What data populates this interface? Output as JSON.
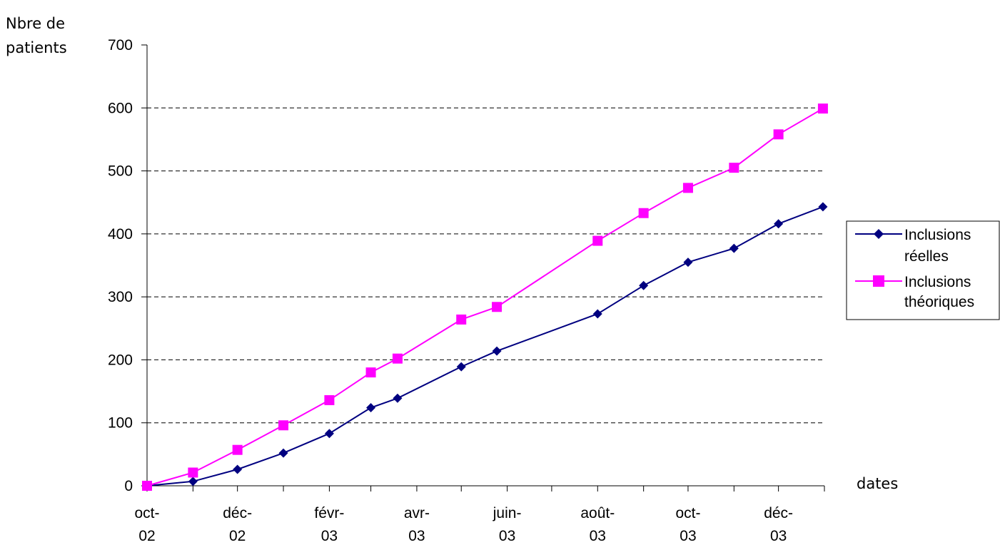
{
  "chart_data": {
    "type": "line",
    "title": "",
    "ylabel": [
      "Nbre de",
      "patients"
    ],
    "xlabel": "dates",
    "ylim": [
      0,
      700
    ],
    "yticks": [
      0,
      100,
      200,
      300,
      400,
      500,
      600,
      700
    ],
    "x_tick_labels": [
      [
        "oct-",
        "02"
      ],
      [
        "déc-",
        "02"
      ],
      [
        "févr-",
        "03"
      ],
      [
        "avr-",
        "03"
      ],
      [
        "juin-",
        "03"
      ],
      [
        "août-",
        "03"
      ],
      [
        "oct-",
        "03"
      ],
      [
        "déc-",
        "03"
      ]
    ],
    "grid": "horizontal-dashed",
    "legend_position": "right",
    "series": [
      {
        "name": [
          "Inclusions",
          "réelles"
        ],
        "color": "#000080",
        "marker": "diamond",
        "x": [
          "2002-10-01",
          "2002-11-01",
          "2002-12-01",
          "2003-01-01",
          "2003-02-01",
          "2003-03-01",
          "2003-03-19",
          "2003-05-01",
          "2003-05-25",
          "2003-08-01",
          "2003-09-01",
          "2003-10-01",
          "2003-11-01",
          "2003-12-01",
          "2003-12-31"
        ],
        "values": [
          0,
          7,
          26,
          52,
          83,
          124,
          139,
          189,
          214,
          273,
          318,
          355,
          377,
          416,
          443
        ]
      },
      {
        "name": [
          "Inclusions",
          "théoriques"
        ],
        "color": "#FF00FF",
        "marker": "square",
        "x": [
          "2002-10-01",
          "2002-11-01",
          "2002-12-01",
          "2003-01-01",
          "2003-02-01",
          "2003-03-01",
          "2003-03-19",
          "2003-05-01",
          "2003-05-25",
          "2003-08-01",
          "2003-09-01",
          "2003-10-01",
          "2003-11-01",
          "2003-12-01",
          "2003-12-31"
        ],
        "values": [
          0,
          21,
          57,
          96,
          136,
          180,
          202,
          264,
          284,
          389,
          433,
          473,
          505,
          558,
          599
        ]
      }
    ]
  }
}
